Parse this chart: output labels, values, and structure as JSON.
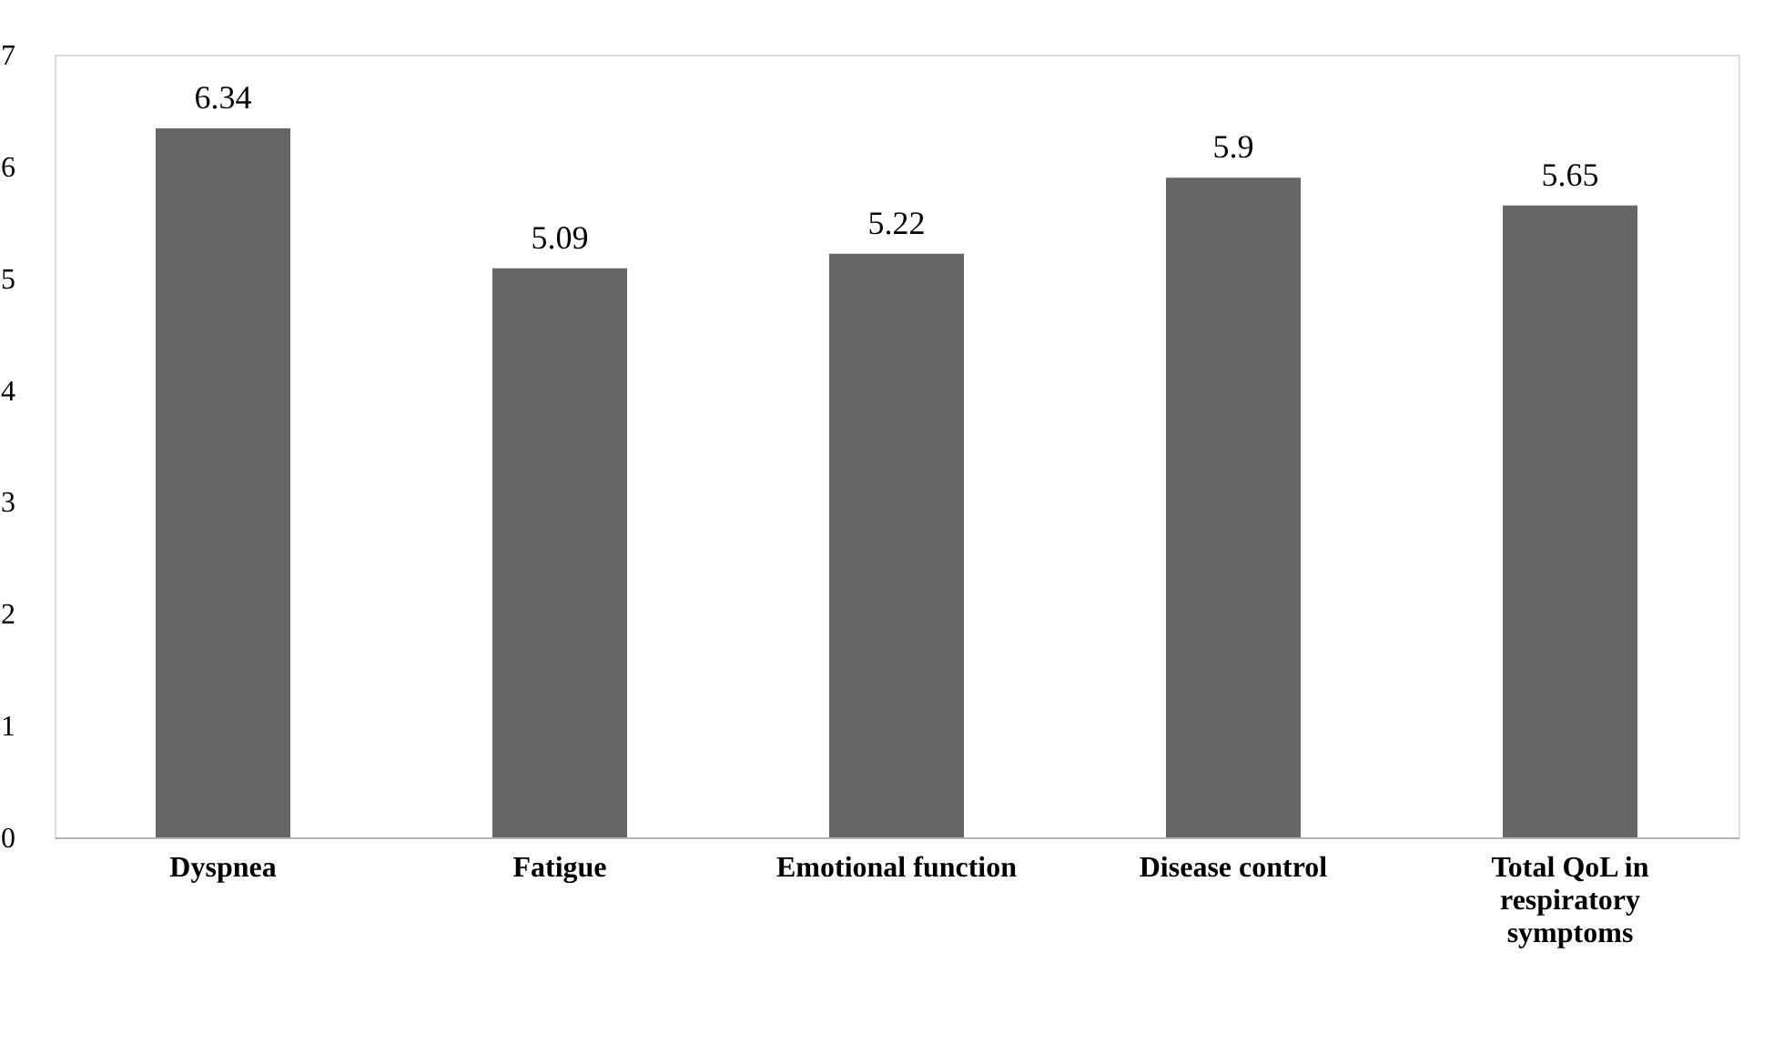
{
  "chart_data": {
    "type": "bar",
    "categories": [
      "Dyspnea",
      "Fatigue",
      "Emotional function",
      "Disease control",
      "Total QoL in respiratory symptoms"
    ],
    "values": [
      6.34,
      5.09,
      5.22,
      5.9,
      5.65
    ],
    "color": "#666666",
    "ylim": [
      0,
      7
    ],
    "yticks": [
      0,
      1,
      2,
      3,
      4,
      5,
      6,
      7
    ],
    "grid": false,
    "data_labels": true
  }
}
